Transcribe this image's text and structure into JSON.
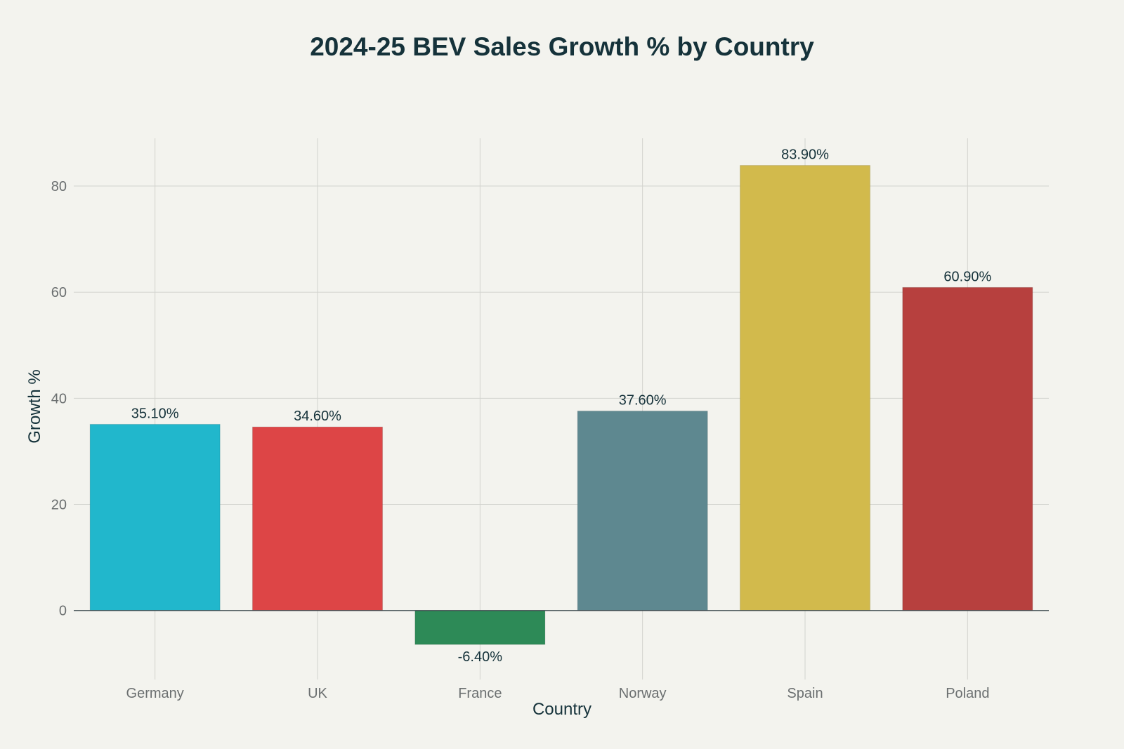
{
  "chart_data": {
    "type": "bar",
    "title": "2024-25 BEV Sales Growth % by Country",
    "xlabel": "Country",
    "ylabel": "Growth %",
    "categories": [
      "Germany",
      "UK",
      "France",
      "Norway",
      "Spain",
      "Poland"
    ],
    "values": [
      35.1,
      34.6,
      -6.4,
      37.6,
      83.9,
      60.9
    ],
    "value_labels": [
      "35.10%",
      "34.60%",
      "-6.40%",
      "37.60%",
      "83.90%",
      "60.90%"
    ],
    "colors": [
      "#21b7cc",
      "#dd4546",
      "#2d8a57",
      "#5e8890",
      "#d2ba4c",
      "#b7403e"
    ],
    "ylim": [
      -13,
      89
    ],
    "yticks": [
      0,
      20,
      40,
      60,
      80
    ],
    "grid": true,
    "legend": "none"
  }
}
